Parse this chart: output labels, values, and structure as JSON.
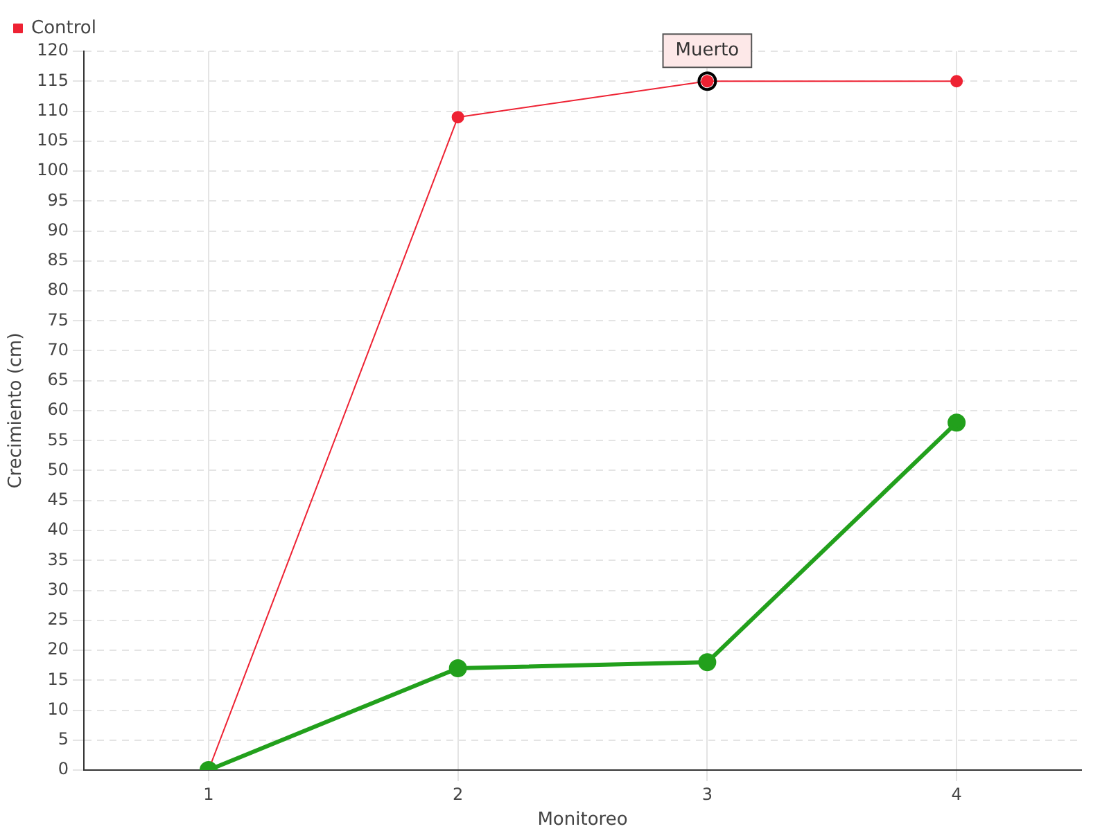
{
  "chart_data": {
    "type": "line",
    "xlabel": "Monitoreo",
    "ylabel": "Crecimiento (cm)",
    "categories": [
      "1",
      "2",
      "3",
      "4"
    ],
    "series": [
      {
        "color": "#22a01c",
        "values": [
          0,
          17,
          18,
          58
        ]
      },
      {
        "name": "Control",
        "color": "#ee2233",
        "values": [
          0,
          109,
          115,
          115
        ]
      }
    ],
    "ylim": [
      0,
      120
    ],
    "yticks": [
      0,
      5,
      10,
      15,
      20,
      25,
      30,
      35,
      40,
      45,
      50,
      55,
      60,
      65,
      70,
      75,
      80,
      85,
      90,
      95,
      100,
      105,
      110,
      115,
      120
    ],
    "grid": true,
    "legend": "top left",
    "marker": "circle",
    "line_style": "solid",
    "annotations": [
      {
        "text": "Muerto",
        "x": "3",
        "y": 115
      }
    ]
  }
}
